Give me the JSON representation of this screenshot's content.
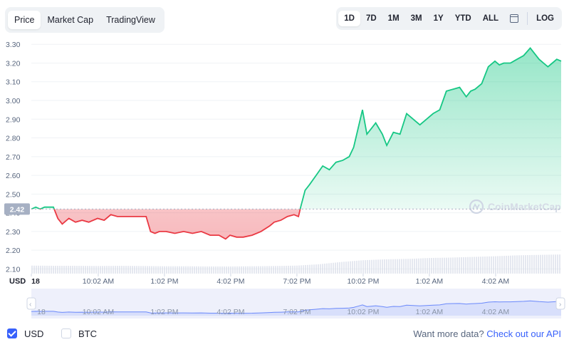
{
  "view_tabs": [
    {
      "label": "Price",
      "active": true
    },
    {
      "label": "Market Cap",
      "active": false
    },
    {
      "label": "TradingView",
      "active": false
    }
  ],
  "time_ranges": [
    "1D",
    "7D",
    "1M",
    "3M",
    "1Y",
    "YTD",
    "ALL"
  ],
  "active_range": "1D",
  "calendar_icon": "calendar-icon",
  "log_label": "LOG",
  "colors": {
    "up": "#16c784",
    "down": "#ea3943",
    "accent": "#3861fb",
    "grid": "#eff2f5",
    "volume": "#cfd6e4"
  },
  "watermark": "CoinMarketCap",
  "chart_data": {
    "type": "line",
    "title": "",
    "ylabel": "",
    "xlabel": "",
    "ylim": [
      2.075,
      3.335
    ],
    "y_ticks": [
      2.1,
      2.2,
      2.3,
      2.4,
      2.5,
      2.6,
      2.7,
      2.8,
      2.9,
      3.0,
      3.1,
      3.2,
      3.3
    ],
    "x_ticks": [
      "18",
      "10:02 AM",
      "1:02 PM",
      "4:02 PM",
      "7:02 PM",
      "10:02 PM",
      "1:02 AM",
      "4:02 AM"
    ],
    "x_range_hours": [
      7.0,
      31.0
    ],
    "x_tick_hours": [
      7.0,
      10.03,
      13.03,
      16.03,
      19.03,
      22.03,
      25.03,
      28.03
    ],
    "baseline_value": 2.42,
    "baseline_label": "2.42",
    "currency_label": "USD",
    "grid": true,
    "series": [
      {
        "x": [
          7.0,
          7.2,
          7.4,
          7.6,
          7.8,
          8.0,
          8.2,
          8.4,
          8.7,
          9.0,
          9.3,
          9.6,
          10.0,
          10.3,
          10.6,
          10.9,
          11.2,
          11.5,
          11.9,
          12.2,
          12.4,
          12.6,
          12.8,
          13.1,
          13.5,
          13.9,
          14.3,
          14.7,
          15.1,
          15.5,
          15.8,
          16.0,
          16.3,
          16.6,
          17.0,
          17.4,
          17.8,
          18.0,
          18.3,
          18.6,
          18.9,
          19.1,
          19.2,
          19.4,
          19.6,
          19.9,
          20.2,
          20.5,
          20.8,
          21.1,
          21.4,
          21.6,
          21.8,
          22.0,
          22.2,
          22.4,
          22.6,
          22.9,
          23.1,
          23.4,
          23.7,
          24.0,
          24.3,
          24.6,
          24.9,
          25.2,
          25.5,
          25.8,
          26.1,
          26.4,
          26.7,
          26.9,
          27.1,
          27.4,
          27.7,
          28.0,
          28.2,
          28.4,
          28.7,
          29.0,
          29.3,
          29.6,
          30.0,
          30.2,
          30.4,
          30.6,
          30.8,
          31.0
        ],
        "y": [
          2.42,
          2.43,
          2.42,
          2.43,
          2.43,
          2.43,
          2.37,
          2.34,
          2.37,
          2.35,
          2.36,
          2.35,
          2.37,
          2.36,
          2.39,
          2.38,
          2.38,
          2.38,
          2.38,
          2.38,
          2.3,
          2.29,
          2.3,
          2.3,
          2.29,
          2.3,
          2.29,
          2.3,
          2.28,
          2.28,
          2.26,
          2.28,
          2.27,
          2.27,
          2.28,
          2.3,
          2.33,
          2.35,
          2.36,
          2.38,
          2.39,
          2.38,
          2.43,
          2.52,
          2.55,
          2.6,
          2.65,
          2.63,
          2.67,
          2.68,
          2.7,
          2.75,
          2.85,
          2.95,
          2.82,
          2.85,
          2.88,
          2.82,
          2.76,
          2.83,
          2.82,
          2.93,
          2.9,
          2.87,
          2.9,
          2.93,
          2.95,
          3.05,
          3.06,
          3.07,
          3.02,
          3.05,
          3.06,
          3.09,
          3.18,
          3.21,
          3.19,
          3.2,
          3.2,
          3.22,
          3.24,
          3.28,
          3.22,
          3.2,
          3.18,
          3.2,
          3.22,
          3.21
        ]
      }
    ],
    "volume": {
      "x": [
        7,
        8,
        9,
        10,
        11,
        12,
        13,
        14,
        15,
        16,
        17,
        18,
        19,
        20,
        21,
        22,
        23,
        24,
        25,
        26,
        27,
        28,
        29,
        30,
        31
      ],
      "values": [
        0.36,
        0.35,
        0.35,
        0.34,
        0.35,
        0.34,
        0.33,
        0.33,
        0.32,
        0.32,
        0.33,
        0.34,
        0.36,
        0.42,
        0.52,
        0.6,
        0.64,
        0.66,
        0.7,
        0.72,
        0.75,
        0.78,
        0.82,
        0.84,
        0.86
      ]
    },
    "navigator": {
      "x_ticks": [
        "18",
        "10:02 AM",
        "1:02 PM",
        "4:02 PM",
        "7:02 PM",
        "10:02 PM",
        "1:02 AM",
        "4:02 AM"
      ]
    }
  },
  "footer": {
    "options": [
      {
        "label": "USD",
        "checked": true
      },
      {
        "label": "BTC",
        "checked": false
      }
    ],
    "more_text": "Want more data?",
    "more_link": "Check out our API"
  }
}
